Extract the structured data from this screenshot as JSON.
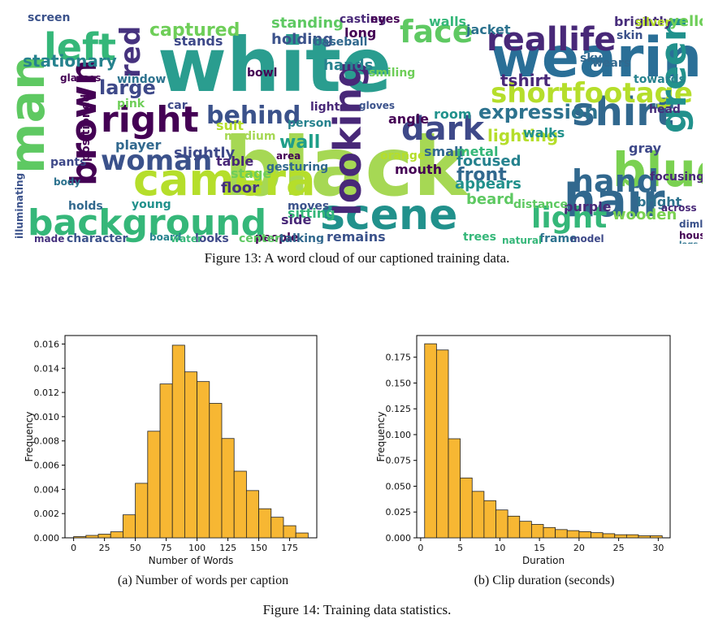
{
  "figure13": {
    "caption": "Figure 13: A word cloud of our captioned training data.",
    "words": [
      {
        "t": "white",
        "c": "#2a9d8f"
      },
      {
        "t": "black",
        "c": "#a6d854"
      },
      {
        "t": "wearing",
        "c": "#2a6f97"
      },
      {
        "t": "man",
        "c": "#5ec962"
      },
      {
        "t": "hair",
        "c": "#31688e"
      },
      {
        "t": "background",
        "c": "#35b779"
      },
      {
        "t": "scene",
        "c": "#21918c"
      },
      {
        "t": "camera",
        "c": "#b5de2b"
      },
      {
        "t": "shirt",
        "c": "#31688e"
      },
      {
        "t": "woman",
        "c": "#3b528b"
      },
      {
        "t": "blue",
        "c": "#7ad151"
      },
      {
        "t": "left",
        "c": "#35b779"
      },
      {
        "t": "right",
        "c": "#440154"
      },
      {
        "t": "face",
        "c": "#5ec962"
      },
      {
        "t": "reallife",
        "c": "#482878"
      },
      {
        "t": "shortfootage",
        "c": "#b5de2b"
      },
      {
        "t": "green",
        "c": "#21918c"
      },
      {
        "t": "dark",
        "c": "#3e4989"
      },
      {
        "t": "light",
        "c": "#35b779"
      },
      {
        "t": "hand",
        "c": "#31688e"
      },
      {
        "t": "brown",
        "c": "#440154"
      },
      {
        "t": "looking",
        "c": "#482878"
      },
      {
        "t": "behind",
        "c": "#3b528b"
      },
      {
        "t": "expression",
        "c": "#2c728e"
      },
      {
        "t": "captured",
        "c": "#6ece58"
      },
      {
        "t": "red",
        "c": "#46327e"
      },
      {
        "t": "stationary",
        "c": "#26828e"
      },
      {
        "t": "large",
        "c": "#3e4989"
      },
      {
        "t": "wall",
        "c": "#1f9e89"
      },
      {
        "t": "front",
        "c": "#31688e"
      },
      {
        "t": "tshirt",
        "c": "#482878"
      },
      {
        "t": "standing",
        "c": "#5ec962"
      },
      {
        "t": "holding",
        "c": "#3b528b"
      },
      {
        "t": "jacket",
        "c": "#2c728e"
      },
      {
        "t": "brightly",
        "c": "#472d7b"
      },
      {
        "t": "yellow",
        "c": "#6ece58"
      },
      {
        "t": "wooden",
        "c": "#7ad151"
      },
      {
        "t": "lighting",
        "c": "#b5de2b"
      },
      {
        "t": "hands",
        "c": "#26828e"
      },
      {
        "t": "slightly",
        "c": "#3e4989"
      },
      {
        "t": "table",
        "c": "#482878"
      },
      {
        "t": "sitting",
        "c": "#35b779"
      },
      {
        "t": "remains",
        "c": "#3b528b"
      },
      {
        "t": "people",
        "c": "#440154"
      },
      {
        "t": "talking",
        "c": "#31688e"
      },
      {
        "t": "focused",
        "c": "#26828e"
      },
      {
        "t": "appears",
        "c": "#21918c"
      },
      {
        "t": "bright",
        "c": "#2c728e"
      },
      {
        "t": "gray",
        "c": "#3e4989"
      },
      {
        "t": "side",
        "c": "#482878"
      },
      {
        "t": "floor",
        "c": "#46327e"
      },
      {
        "t": "character",
        "c": "#3b528b"
      },
      {
        "t": "stage",
        "c": "#6ece58"
      },
      {
        "t": "small",
        "c": "#31688e"
      },
      {
        "t": "metal",
        "c": "#35b779"
      },
      {
        "t": "beard",
        "c": "#5ec962"
      },
      {
        "t": "walks",
        "c": "#21918c"
      },
      {
        "t": "mouth",
        "c": "#440154"
      },
      {
        "t": "head",
        "c": "#472d7b"
      },
      {
        "t": "skin",
        "c": "#3b528b"
      },
      {
        "t": "walls",
        "c": "#35b779"
      },
      {
        "t": "long",
        "c": "#440154"
      },
      {
        "t": "window",
        "c": "#2c728e"
      },
      {
        "t": "player",
        "c": "#31688e"
      },
      {
        "t": "stands",
        "c": "#3e4989"
      },
      {
        "t": "smiling",
        "c": "#6ece58"
      },
      {
        "t": "room",
        "c": "#21918c"
      },
      {
        "t": "orange",
        "c": "#b5de2b"
      },
      {
        "t": "angle",
        "c": "#440154"
      },
      {
        "t": "purple",
        "c": "#482878"
      },
      {
        "t": "wears",
        "c": "#31688e"
      },
      {
        "t": "towards",
        "c": "#26828e"
      },
      {
        "t": "frame",
        "c": "#2c728e"
      },
      {
        "t": "trees",
        "c": "#35b779"
      },
      {
        "t": "moves",
        "c": "#3b528b"
      },
      {
        "t": "looks",
        "c": "#3e4989"
      },
      {
        "t": "center",
        "c": "#5ec962"
      },
      {
        "t": "made",
        "c": "#46327e"
      },
      {
        "t": "screen",
        "c": "#3b528b"
      },
      {
        "t": "casting",
        "c": "#482878"
      },
      {
        "t": "eyes",
        "c": "#440154"
      },
      {
        "t": "baseball",
        "c": "#31688e"
      },
      {
        "t": "suit",
        "c": "#b5de2b"
      },
      {
        "t": "medium",
        "c": "#a6d854"
      },
      {
        "t": "person",
        "c": "#26828e"
      },
      {
        "t": "lights",
        "c": "#482878"
      },
      {
        "t": "pink",
        "c": "#6ece58"
      },
      {
        "t": "car",
        "c": "#3e4989"
      },
      {
        "t": "bowl",
        "c": "#440154"
      },
      {
        "t": "silver",
        "c": "#b5de2b"
      },
      {
        "t": "holds",
        "c": "#31688e"
      },
      {
        "t": "young",
        "c": "#21918c"
      },
      {
        "t": "distance",
        "c": "#5ec962"
      },
      {
        "t": "sky",
        "c": "#31688e"
      },
      {
        "t": "glasses",
        "c": "#440154"
      },
      {
        "t": "gloves",
        "c": "#3b528b"
      },
      {
        "t": "pants",
        "c": "#3e4989"
      },
      {
        "t": "body",
        "c": "#2c728e"
      },
      {
        "t": "board",
        "c": "#26828e"
      },
      {
        "t": "water",
        "c": "#35b779"
      },
      {
        "t": "area",
        "c": "#440154"
      },
      {
        "t": "gesturing",
        "c": "#31688e"
      },
      {
        "t": "across",
        "c": "#482878"
      },
      {
        "t": "dimly",
        "c": "#3b528b"
      },
      {
        "t": "house",
        "c": "#440154"
      },
      {
        "t": "legs",
        "c": "#2c728e"
      },
      {
        "t": "model",
        "c": "#3e4989"
      },
      {
        "t": "natural",
        "c": "#35b779"
      },
      {
        "t": "illuminating",
        "c": "#3b528b"
      },
      {
        "t": "positioned",
        "c": "#440154"
      },
      {
        "t": "focusing",
        "c": "#482878"
      }
    ]
  },
  "figure14": {
    "caption": "Figure 14: Training data statistics.",
    "subcaption_a": "(a) Number of words per caption",
    "subcaption_b": "(b) Clip duration (seconds)"
  },
  "chart_data": [
    {
      "type": "bar",
      "xlabel": "Number of Words",
      "ylabel": "Frequency",
      "xlim": [
        -7,
        197
      ],
      "ylim": [
        0,
        0.0167
      ],
      "xticks": [
        0,
        25,
        50,
        75,
        100,
        125,
        150,
        175
      ],
      "yticks": [
        0.0,
        0.002,
        0.004,
        0.006,
        0.008,
        0.01,
        0.012,
        0.014,
        0.016
      ],
      "ytick_labels": [
        "0.000",
        "0.002",
        "0.004",
        "0.006",
        "0.008",
        "0.010",
        "0.012",
        "0.014",
        "0.016"
      ],
      "bar_color": "#f7b733",
      "bin_edges": [
        0,
        10,
        20,
        30,
        40,
        50,
        60,
        70,
        80,
        90,
        100,
        110,
        120,
        130,
        140,
        150,
        160,
        170,
        180,
        190
      ],
      "values": [
        0.0001,
        0.0002,
        0.0003,
        0.0005,
        0.0019,
        0.0045,
        0.0088,
        0.0127,
        0.0159,
        0.0137,
        0.0129,
        0.0111,
        0.0082,
        0.0055,
        0.0039,
        0.0024,
        0.0017,
        0.001,
        0.0004
      ]
    },
    {
      "type": "bar",
      "xlabel": "Duration",
      "ylabel": "Frequency",
      "xlim": [
        -0.5,
        31.5
      ],
      "ylim": [
        0,
        0.196
      ],
      "xticks": [
        0,
        5,
        10,
        15,
        20,
        25,
        30
      ],
      "yticks": [
        0.0,
        0.025,
        0.05,
        0.075,
        0.1,
        0.125,
        0.15,
        0.175
      ],
      "ytick_labels": [
        "0.000",
        "0.025",
        "0.050",
        "0.075",
        "0.100",
        "0.125",
        "0.150",
        "0.175"
      ],
      "bar_color": "#f7b733",
      "bin_edges": [
        0.5,
        2,
        3.5,
        5,
        6.5,
        8,
        9.5,
        11,
        12.5,
        14,
        15.5,
        17,
        18.5,
        20,
        21.5,
        23,
        24.5,
        26,
        27.5,
        29,
        30.5
      ],
      "values": [
        0.188,
        0.182,
        0.096,
        0.058,
        0.045,
        0.036,
        0.027,
        0.021,
        0.016,
        0.013,
        0.01,
        0.008,
        0.007,
        0.006,
        0.005,
        0.004,
        0.003,
        0.003,
        0.002,
        0.002
      ]
    }
  ]
}
